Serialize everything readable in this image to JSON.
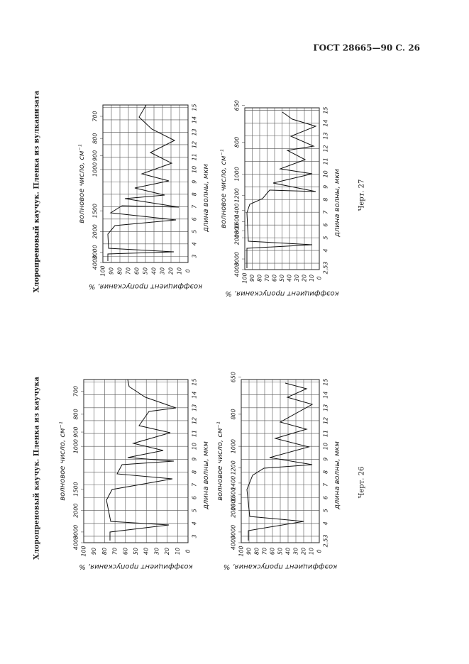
{
  "header": "ГОСТ 28665—90 С. 26",
  "figures": [
    {
      "caption": "Хлоропреновый каучук. Пленка из вулканизата",
      "label": "Черт. 27",
      "panels": [
        {
          "wavenumber_ticks": [
            "4000",
            "3000",
            "2000",
            "1500",
            "1000",
            "900",
            "800",
            "700"
          ],
          "wavenumber_label": "волновое число, см⁻¹",
          "wavelength_ticks": [
            "3",
            "4",
            "5",
            "6",
            "7",
            "8",
            "9",
            "10",
            "11",
            "12",
            "13",
            "14",
            "15"
          ],
          "wavelength_label": "длина волны, мкм",
          "transmission_ticks": [
            "100",
            "90",
            "80",
            "70",
            "60",
            "50",
            "40",
            "30",
            "20",
            "10",
            "0"
          ],
          "transmission_label": "коэффициент пропускания, %"
        },
        {
          "wavenumber_ticks": [
            "4000",
            "3000",
            "2000",
            "1800",
            "1600",
            "1400",
            "1200",
            "1000",
            "800",
            "650"
          ],
          "wavenumber_label": "волновое число, см⁻¹",
          "wavelength_ticks": [
            "2,5",
            "3",
            "4",
            "5",
            "6",
            "7",
            "8",
            "9",
            "10",
            "11",
            "12",
            "13",
            "14",
            "15"
          ],
          "wavelength_label": "длина волны, мкм",
          "transmission_ticks": [
            "100",
            "90",
            "80",
            "70",
            "60",
            "50",
            "40",
            "30",
            "20",
            "10",
            "0"
          ],
          "transmission_label": "коэффициент пропускания, %"
        }
      ]
    },
    {
      "caption": "Хлоропреновый каучук. Пленка из каучука",
      "label": "Черт. 26",
      "panels": [
        {
          "wavenumber_ticks": [
            "4000",
            "3000",
            "2000",
            "1500",
            "1000",
            "900",
            "800",
            "700"
          ],
          "wavenumber_label": "волновое число, см⁻¹",
          "wavelength_ticks": [
            "3",
            "4",
            "5",
            "6",
            "7",
            "8",
            "9",
            "10",
            "11",
            "12",
            "13",
            "14",
            "15"
          ],
          "wavelength_label": "длина волны, мкм",
          "transmission_ticks": [
            "100",
            "90",
            "80",
            "70",
            "60",
            "50",
            "40",
            "30",
            "20",
            "10",
            "0"
          ],
          "transmission_label": "коэффициент пропускания, %"
        },
        {
          "wavenumber_ticks": [
            "4000",
            "3000",
            "2000",
            "1800",
            "1600",
            "1400",
            "1200",
            "1000",
            "800",
            "650"
          ],
          "wavenumber_label": "волновое число, см⁻¹",
          "wavelength_ticks": [
            "2,5",
            "3",
            "4",
            "5",
            "6",
            "7",
            "8",
            "9",
            "10",
            "11",
            "12",
            "13",
            "14",
            "15"
          ],
          "wavelength_label": "длина волны, мкм",
          "transmission_ticks": [
            "100",
            "90",
            "80",
            "70",
            "60",
            "50",
            "40",
            "30",
            "20",
            "10",
            "0"
          ],
          "transmission_label": "коэффициент пропускания, %"
        }
      ]
    }
  ]
}
